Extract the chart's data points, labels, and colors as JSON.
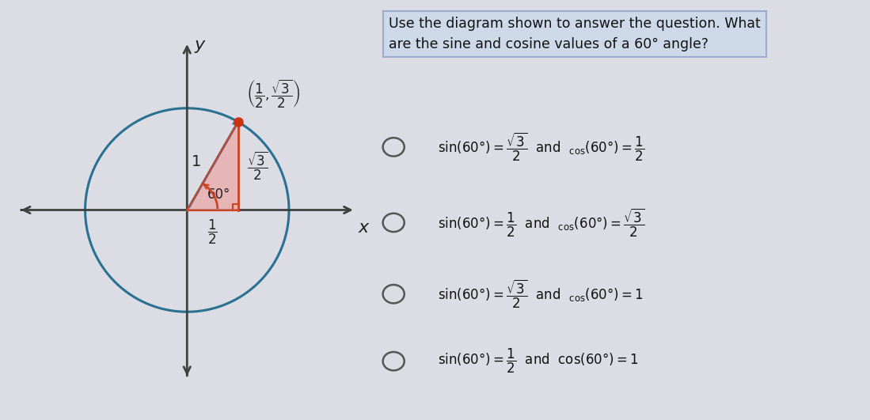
{
  "bg_color": "#dcdce4",
  "panel_bg": "#dcdce4",
  "top_bar_color": "#c8c8d8",
  "circle_color": "#2a7090",
  "axis_color": "#404040",
  "hyp_color": "#3a7aaa",
  "triangle_fill": "#f0a0a0",
  "triangle_fill_alpha": 0.65,
  "triangle_edge": "#cc4422",
  "angle_arc_color": "#cc4422",
  "point_color": "#cc3310",
  "right_angle_color": "#cc4422",
  "vertical_leg_color": "#cc4422",
  "label_color": "#222222",
  "question_bg": "#c8d8e8",
  "question_border": "#9999bb",
  "question_text": "Use the diagram shown to answer the question. What\nare the sine and cosine values of a 60° angle?",
  "radio_color": "#555555"
}
